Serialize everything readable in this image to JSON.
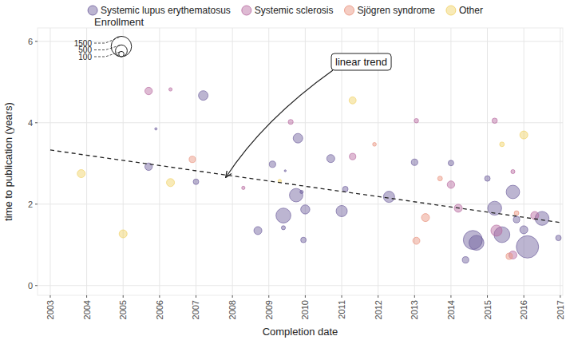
{
  "chart_data": {
    "type": "scatter",
    "x_label": "Completion date",
    "y_label": "time to publication (years)",
    "xlim": [
      2002.65,
      2017.07
    ],
    "ylim": [
      -0.24,
      6.33
    ],
    "xticks": [
      2003,
      2004,
      2005,
      2006,
      2007,
      2008,
      2009,
      2010,
      2011,
      2012,
      2013,
      2014,
      2015,
      2016,
      2017
    ],
    "yticks": [
      0,
      2,
      4,
      6
    ],
    "grid": true,
    "legend": "top",
    "marker": "circle",
    "series": [
      {
        "name": "Systemic lupus erythematosus",
        "color": "#6a5a9a",
        "x": [
          2005.7,
          2005.9,
          2007.0,
          2007.2,
          2008.7,
          2009.1,
          2009.45,
          2009.4,
          2009.4,
          2009.75,
          2009.8,
          2009.9,
          2010.0,
          2009.95,
          2010.7,
          2011.1,
          2011.0,
          2012.3,
          2013.0,
          2014.0,
          2014.4,
          2014.6,
          2014.7,
          2015.0,
          2015.2,
          2015.4,
          2015.7,
          2015.8,
          2016.0,
          2016.1,
          2016.5,
          2016.95
        ],
        "values": [
          2.92,
          3.85,
          2.55,
          4.67,
          1.35,
          2.98,
          2.82,
          1.42,
          1.72,
          2.22,
          3.62,
          2.3,
          1.87,
          1.12,
          3.12,
          2.37,
          1.83,
          2.18,
          3.03,
          3.01,
          0.63,
          1.12,
          1.05,
          2.63,
          1.9,
          1.25,
          2.3,
          1.62,
          1.37,
          0.95,
          1.65,
          1.17
        ],
        "sizes": [
          200,
          20,
          110,
          330,
          230,
          150,
          10,
          60,
          800,
          650,
          330,
          40,
          300,
          110,
          230,
          110,
          450,
          450,
          150,
          110,
          150,
          1300,
          800,
          110,
          700,
          900,
          650,
          150,
          230,
          1800,
          700,
          110
        ]
      },
      {
        "name": "Systemic sclerosis",
        "color": "#b5679e",
        "x": [
          2005.7,
          2006.3,
          2008.3,
          2009.6,
          2011.3,
          2013.05,
          2014.0,
          2014.2,
          2015.2,
          2015.25,
          2015.7,
          2015.7,
          2016.3
        ],
        "values": [
          4.78,
          4.82,
          2.4,
          4.02,
          3.17,
          4.05,
          2.48,
          1.9,
          4.05,
          1.35,
          2.8,
          0.75,
          1.72
        ],
        "sizes": [
          200,
          40,
          40,
          90,
          150,
          70,
          200,
          230,
          100,
          450,
          60,
          230,
          230
        ]
      },
      {
        "name": "Sjögren syndrome",
        "color": "#e8907a",
        "x": [
          2006.9,
          2011.9,
          2013.05,
          2013.3,
          2013.7,
          2015.6,
          2015.8
        ],
        "values": [
          3.1,
          3.47,
          1.1,
          1.67,
          2.63,
          0.72,
          1.78
        ],
        "sizes": [
          150,
          50,
          180,
          230,
          80,
          150,
          80
        ]
      },
      {
        "name": "Other",
        "color": "#f0d060",
        "x": [
          2003.85,
          2005.0,
          2006.3,
          2009.3,
          2011.3,
          2015.4,
          2016.0
        ],
        "values": [
          2.75,
          1.27,
          2.53,
          2.57,
          4.55,
          3.47,
          3.7
        ],
        "sizes": [
          230,
          230,
          230,
          40,
          180,
          80,
          230
        ]
      }
    ],
    "size_legend": {
      "title": "Enrollment",
      "values": [
        100,
        500,
        1500
      ]
    },
    "trend": {
      "label": "linear trend",
      "x": [
        2003,
        2017
      ],
      "values": [
        3.33,
        1.55
      ],
      "line_style": "dashed"
    }
  }
}
